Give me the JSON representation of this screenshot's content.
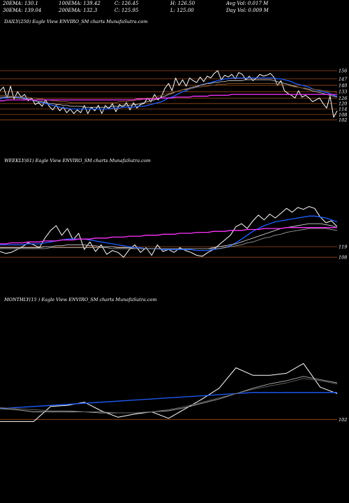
{
  "header_stats": {
    "row1": [
      "20EMA: 130.1",
      "100EMA: 139.42",
      "C: 126.45",
      "H: 126.50",
      "Avg Vol: 0.017 M"
    ],
    "row2": [
      "30EMA: 139.04",
      "200EMA: 132.3",
      "C: 125.95",
      "L: 125.00",
      "Day Vol: 0.009 M"
    ]
  },
  "panels": {
    "daily": {
      "label": "DAILY(250) Eagle   View  ENVIRO_SM charts MunafaSutra.com"
    },
    "weekly": {
      "label": "WEEKLY(61) Eagle   View  ENVIRO_SM charts MunafaSutra.com"
    },
    "monthly": {
      "label": "MONTHLY(15                   ) Eagle   View  ENVIRO_SM charts MunafaSutra.com"
    }
  },
  "chart_data": [
    {
      "type": "line",
      "name": "daily",
      "ylim": [
        88,
        163
      ],
      "levels": [
        "156",
        "147",
        "140",
        "133",
        "126",
        "120",
        "114",
        "108",
        "102"
      ],
      "series": [
        {
          "name": "price",
          "color": "#ffffff",
          "values": [
            134,
            138,
            126,
            139,
            125,
            133,
            127,
            130,
            123,
            126,
            119,
            121,
            117,
            124,
            117,
            113,
            118,
            112,
            116,
            110,
            114,
            109,
            113,
            110,
            118,
            109,
            116,
            112,
            118,
            109,
            118,
            114,
            120,
            111,
            119,
            116,
            121,
            113,
            121,
            115,
            119,
            120,
            126,
            122,
            130,
            124,
            128,
            137,
            142,
            134,
            148,
            140,
            146,
            139,
            148,
            145,
            143,
            149,
            144,
            150,
            148,
            153,
            156,
            146,
            151,
            149,
            152,
            147,
            154,
            152,
            146,
            150,
            145,
            148,
            152,
            150,
            151,
            153,
            149,
            140,
            145,
            134,
            131,
            129,
            126,
            134,
            127,
            129,
            126,
            122,
            124,
            126,
            120,
            115,
            128,
            105,
            112
          ]
        },
        {
          "name": "ma_short",
          "color": "#1f5eff",
          "values": [
            125,
            126,
            126,
            127,
            127,
            127,
            126,
            126,
            125,
            124,
            123,
            122,
            121,
            120,
            119,
            118,
            117,
            116,
            115,
            115,
            114,
            114,
            114,
            114,
            114,
            114,
            114,
            114,
            114,
            114,
            114,
            114,
            115,
            115,
            115,
            116,
            116,
            116,
            116,
            117,
            117,
            117,
            118,
            119,
            120,
            121,
            122,
            124,
            126,
            127,
            129,
            131,
            133,
            134,
            136,
            137,
            138,
            140,
            141,
            142,
            143,
            144,
            145,
            146,
            147,
            147,
            148,
            148,
            148,
            148,
            148,
            148,
            148,
            148,
            148,
            148,
            148,
            148,
            148,
            147,
            147,
            146,
            145,
            144,
            142,
            141,
            140,
            139,
            138,
            136,
            135,
            134,
            133,
            132,
            131,
            129,
            128
          ]
        },
        {
          "name": "ma_mid",
          "color": "#bbbbbb",
          "values": [
            127,
            127,
            127,
            127,
            127,
            126,
            126,
            125,
            125,
            124,
            123,
            122,
            122,
            121,
            120,
            120,
            119,
            119,
            118,
            118,
            117,
            117,
            117,
            117,
            116,
            116,
            116,
            116,
            116,
            116,
            116,
            116,
            117,
            117,
            117,
            118,
            118,
            118,
            119,
            119,
            120,
            121,
            122,
            123,
            124,
            125,
            127,
            128,
            130,
            131,
            133,
            134,
            135,
            136,
            137,
            138,
            139,
            140,
            141,
            142,
            142,
            143,
            143,
            144,
            144,
            145,
            145,
            145,
            145,
            145,
            146,
            146,
            146,
            146,
            146,
            146,
            146,
            146,
            145,
            144,
            143,
            142,
            141,
            140,
            139,
            138,
            137,
            136,
            135,
            134,
            133,
            132,
            131,
            130,
            129,
            128,
            127
          ]
        },
        {
          "name": "ma_long",
          "color": "#8a5a2a",
          "values": [
            129,
            129,
            128,
            128,
            128,
            128,
            127,
            127,
            127,
            126,
            126,
            125,
            125,
            124,
            124,
            123,
            123,
            122,
            122,
            122,
            121,
            121,
            121,
            121,
            121,
            121,
            121,
            121,
            121,
            121,
            121,
            121,
            121,
            121,
            122,
            122,
            122,
            123,
            123,
            124,
            124,
            125,
            126,
            126,
            127,
            128,
            129,
            130,
            131,
            132,
            133,
            134,
            135,
            135,
            136,
            137,
            138,
            138,
            139,
            139,
            140,
            140,
            141,
            141,
            141,
            142,
            142,
            142,
            142,
            142,
            142,
            142,
            142,
            142,
            142,
            142,
            142,
            142,
            142,
            141,
            141,
            140,
            140,
            139,
            138,
            138,
            137,
            137,
            136,
            136,
            135,
            135,
            134,
            134,
            133,
            133,
            132
          ]
        },
        {
          "name": "ma_200",
          "color": "#ff33ff",
          "values": [
            123,
            123,
            124,
            124,
            124,
            124,
            124,
            124,
            124,
            124,
            124,
            124,
            124,
            124,
            124,
            124,
            124,
            124,
            124,
            124,
            124,
            124,
            124,
            124,
            124,
            124,
            124,
            124,
            124,
            124,
            124,
            124,
            124,
            124,
            124,
            124,
            124,
            124,
            124,
            125,
            125,
            125,
            125,
            125,
            125,
            126,
            126,
            126,
            126,
            126,
            127,
            127,
            127,
            127,
            127,
            128,
            128,
            128,
            128,
            128,
            129,
            129,
            129,
            129,
            129,
            129,
            130,
            130,
            130,
            130,
            130,
            130,
            130,
            130,
            130,
            130,
            130,
            130,
            130,
            130,
            130,
            130,
            130,
            130,
            130,
            130,
            130,
            130,
            130,
            130,
            130,
            130,
            130,
            130,
            130,
            130,
            130
          ]
        }
      ]
    },
    {
      "type": "line",
      "name": "weekly",
      "ylim": [
        95,
        168
      ],
      "levels": [
        "119",
        "108"
      ],
      "series": [
        {
          "name": "price",
          "color": "#ffffff",
          "values": [
            114,
            112,
            113,
            116,
            119,
            123,
            121,
            118,
            128,
            136,
            141,
            131,
            138,
            126,
            133,
            116,
            124,
            114,
            121,
            111,
            115,
            113,
            108,
            116,
            121,
            113,
            118,
            110,
            121,
            114,
            116,
            113,
            118,
            115,
            113,
            110,
            109,
            113,
            116,
            121,
            126,
            131,
            140,
            143,
            138,
            146,
            152,
            147,
            153,
            149,
            154,
            159,
            155,
            160,
            158,
            161,
            159,
            150,
            144,
            146,
            140
          ]
        },
        {
          "name": "ma_short",
          "color": "#1f5eff",
          "values": [
            121,
            121,
            121,
            121,
            121,
            122,
            122,
            122,
            123,
            124,
            125,
            126,
            127,
            127,
            127,
            127,
            126,
            125,
            124,
            123,
            122,
            121,
            120,
            119,
            118,
            118,
            117,
            117,
            117,
            116,
            116,
            116,
            116,
            116,
            116,
            115,
            115,
            115,
            116,
            117,
            118,
            120,
            123,
            127,
            131,
            135,
            138,
            141,
            143,
            145,
            146,
            147,
            148,
            149,
            150,
            151,
            151,
            150,
            149,
            147,
            145
          ]
        },
        {
          "name": "ma_mid",
          "color": "#cccccc",
          "values": [
            118,
            118,
            118,
            118,
            118,
            118,
            118,
            118,
            119,
            119,
            120,
            120,
            121,
            121,
            121,
            121,
            120,
            120,
            119,
            119,
            119,
            118,
            118,
            118,
            117,
            117,
            117,
            117,
            117,
            117,
            117,
            117,
            117,
            117,
            117,
            117,
            117,
            117,
            118,
            119,
            120,
            121,
            122,
            124,
            126,
            128,
            130,
            132,
            134,
            136,
            138,
            139,
            140,
            141,
            142,
            143,
            143,
            143,
            142,
            141,
            139
          ]
        },
        {
          "name": "ma_long",
          "color": "#999999",
          "values": [
            117,
            117,
            117,
            117,
            117,
            117,
            117,
            117,
            117,
            118,
            118,
            118,
            118,
            118,
            118,
            118,
            118,
            118,
            118,
            118,
            117,
            117,
            117,
            117,
            117,
            117,
            117,
            117,
            117,
            117,
            117,
            117,
            117,
            117,
            117,
            117,
            117,
            117,
            117,
            117,
            118,
            119,
            120,
            121,
            123,
            124,
            126,
            128,
            129,
            131,
            132,
            134,
            135,
            136,
            137,
            138,
            138,
            138,
            138,
            137,
            136
          ]
        },
        {
          "name": "ma_200",
          "color": "#ff33ff",
          "values": [
            122,
            122,
            123,
            123,
            123,
            124,
            124,
            124,
            125,
            125,
            125,
            126,
            126,
            126,
            127,
            127,
            127,
            128,
            128,
            128,
            129,
            129,
            129,
            130,
            130,
            130,
            131,
            131,
            131,
            132,
            132,
            132,
            133,
            133,
            133,
            134,
            134,
            134,
            135,
            135,
            135,
            136,
            136,
            136,
            137,
            137,
            137,
            138,
            138,
            138,
            138,
            139,
            139,
            139,
            139,
            139,
            139,
            139,
            139,
            139,
            139
          ]
        }
      ]
    },
    {
      "type": "line",
      "name": "monthly",
      "ylim": [
        97,
        175
      ],
      "levels": [
        "102"
      ],
      "series": [
        {
          "name": "price",
          "color": "#ffffff",
          "values": [
            100,
            100,
            100,
            114,
            115,
            118,
            110,
            104,
            107,
            109,
            103,
            112,
            121,
            131,
            150,
            143,
            143,
            145,
            154,
            132,
            126
          ]
        },
        {
          "name": "ma_short",
          "color": "#1f5eff",
          "values": [
            112,
            113,
            114,
            115,
            116,
            117,
            118,
            119,
            120,
            121,
            122,
            123,
            124,
            125,
            126,
            127,
            127,
            127,
            127,
            127,
            127
          ]
        },
        {
          "name": "ma_mid",
          "color": "#aaaaaa",
          "values": [
            112,
            111,
            109,
            109,
            109,
            109,
            108,
            108,
            108,
            109,
            110,
            113,
            117,
            121,
            126,
            131,
            135,
            138,
            142,
            139,
            136
          ]
        },
        {
          "name": "ma_long",
          "color": "#666666",
          "values": [
            113,
            112,
            111,
            110,
            110,
            109,
            109,
            108,
            108,
            109,
            111,
            114,
            118,
            122,
            126,
            130,
            133,
            136,
            140,
            138,
            135
          ]
        }
      ]
    }
  ]
}
